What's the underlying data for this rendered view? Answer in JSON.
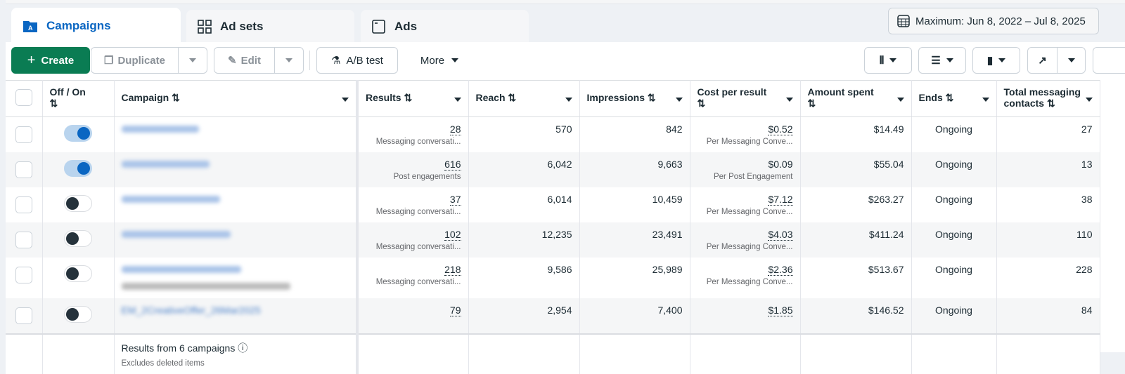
{
  "tabs": [
    {
      "label": "Campaigns",
      "icon": "campaign-folder-icon",
      "active": true
    },
    {
      "label": "Ad sets",
      "icon": "grid-icon"
    },
    {
      "label": "Ads",
      "icon": "ad-window-icon"
    }
  ],
  "date_range": "Maximum: Jun 8, 2022 – Jul 8, 2025",
  "toolbar": {
    "create": "Create",
    "duplicate": "Duplicate",
    "edit": "Edit",
    "ab_test": "A/B test",
    "more": "More"
  },
  "colors": {
    "accent": "#0a66c2",
    "create": "#0a7c53"
  },
  "columns": [
    "Off / On",
    "Campaign",
    "Results",
    "Reach",
    "Impressions",
    "Cost per result",
    "Amount spent",
    "Ends",
    "Total messaging contacts"
  ],
  "rows": [
    {
      "on": true,
      "campaign": "",
      "results": "28",
      "results_type": "Messaging conversati...",
      "reach": "570",
      "impressions": "842",
      "cpr": "$0.52",
      "cpr_type": "Per Messaging Conve...",
      "spent": "$14.49",
      "ends": "Ongoing",
      "contacts": "27"
    },
    {
      "on": true,
      "campaign": "",
      "results": "616",
      "results_type": "Post engagements",
      "reach": "6,042",
      "impressions": "9,663",
      "cpr": "$0.09",
      "cpr_type": "Per Post Engagement",
      "spent": "$55.04",
      "ends": "Ongoing",
      "contacts": "13"
    },
    {
      "on": false,
      "campaign": "",
      "results": "37",
      "results_type": "Messaging conversati...",
      "reach": "6,014",
      "impressions": "10,459",
      "cpr": "$7.12",
      "cpr_type": "Per Messaging Conve...",
      "spent": "$263.27",
      "ends": "Ongoing",
      "contacts": "38"
    },
    {
      "on": false,
      "campaign": "",
      "results": "102",
      "results_type": "Messaging conversati...",
      "reach": "12,235",
      "impressions": "23,491",
      "cpr": "$4.03",
      "cpr_type": "Per Messaging Conve...",
      "spent": "$411.24",
      "ends": "Ongoing",
      "contacts": "110"
    },
    {
      "on": false,
      "campaign": "",
      "results": "218",
      "results_type": "Messaging conversati...",
      "reach": "9,586",
      "impressions": "25,989",
      "cpr": "$2.36",
      "cpr_type": "Per Messaging Conve...",
      "spent": "$513.67",
      "ends": "Ongoing",
      "contacts": "228"
    },
    {
      "on": false,
      "campaign": "EM_2CreativeOffer_26Mar2025",
      "results": "79",
      "results_type": "",
      "reach": "2,954",
      "impressions": "7,400",
      "cpr": "$1.85",
      "cpr_type": "",
      "spent": "$146.52",
      "ends": "Ongoing",
      "contacts": "84"
    }
  ],
  "footer": {
    "title": "Results from 6 campaigns",
    "note": "Excludes deleted items"
  }
}
